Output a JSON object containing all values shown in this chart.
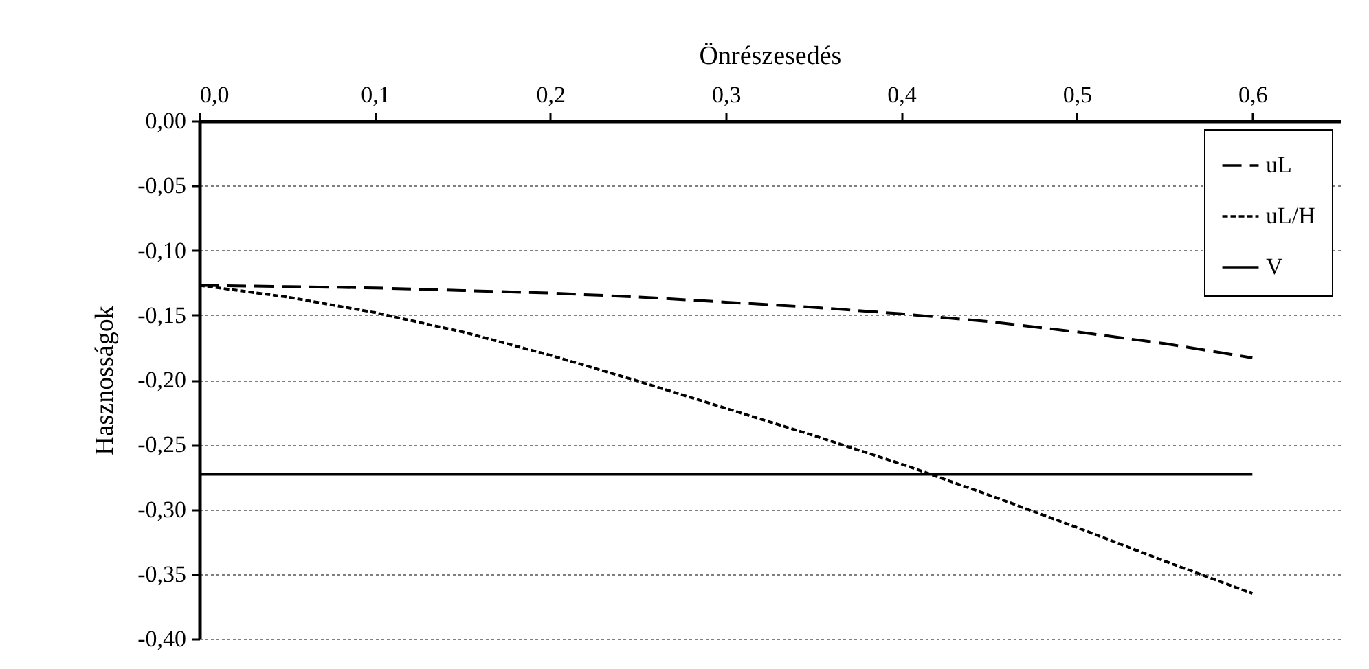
{
  "chart_data": {
    "type": "line",
    "xlabel": "Önrészesedés",
    "ylabel": "Hasznosságok",
    "xlim": [
      0,
      0.65
    ],
    "xticks": [
      {
        "value": 0,
        "label": "0,0"
      },
      {
        "value": 0.1,
        "label": "0,1"
      },
      {
        "value": 0.2,
        "label": "0,2"
      },
      {
        "value": 0.3,
        "label": "0,3"
      },
      {
        "value": 0.4,
        "label": "0,4"
      },
      {
        "value": 0.5,
        "label": "0,5"
      },
      {
        "value": 0.6,
        "label": "0,6"
      }
    ],
    "ylim": [
      -0.4,
      0
    ],
    "yticks": [
      {
        "value": 0,
        "label": "0,00"
      },
      {
        "value": -0.05,
        "label": "-0,05"
      },
      {
        "value": -0.1,
        "label": "-0,10"
      },
      {
        "value": -0.15,
        "label": "-0,15"
      },
      {
        "value": -0.2,
        "label": "-0,20"
      },
      {
        "value": -0.25,
        "label": "-0,25"
      },
      {
        "value": -0.3,
        "label": "-0,30"
      },
      {
        "value": -0.35,
        "label": "-0,35"
      },
      {
        "value": -0.4,
        "label": "-0,40"
      }
    ],
    "x": [
      0,
      0.05,
      0.1,
      0.15,
      0.2,
      0.25,
      0.3,
      0.35,
      0.4,
      0.45,
      0.5,
      0.55,
      0.6
    ],
    "series": [
      {
        "name": "uL",
        "color": "#000000",
        "line_style": "dashed",
        "values": [
          -0.127,
          -0.128,
          -0.129,
          -0.131,
          -0.133,
          -0.136,
          -0.14,
          -0.144,
          -0.149,
          -0.155,
          -0.163,
          -0.172,
          -0.183
        ]
      },
      {
        "name": "uL/H",
        "color": "#000000",
        "line_style": "dotted",
        "values": [
          -0.127,
          -0.136,
          -0.148,
          -0.163,
          -0.181,
          -0.201,
          -0.222,
          -0.243,
          -0.265,
          -0.289,
          -0.314,
          -0.34,
          -0.365
        ]
      },
      {
        "name": "V",
        "color": "#000000",
        "line_style": "solid",
        "values": [
          -0.273,
          -0.273,
          -0.273,
          -0.273,
          -0.273,
          -0.273,
          -0.273,
          -0.273,
          -0.273,
          -0.273,
          -0.273,
          -0.273,
          -0.273
        ]
      }
    ],
    "grid": "y",
    "legend": "top right",
    "marker": "none"
  }
}
